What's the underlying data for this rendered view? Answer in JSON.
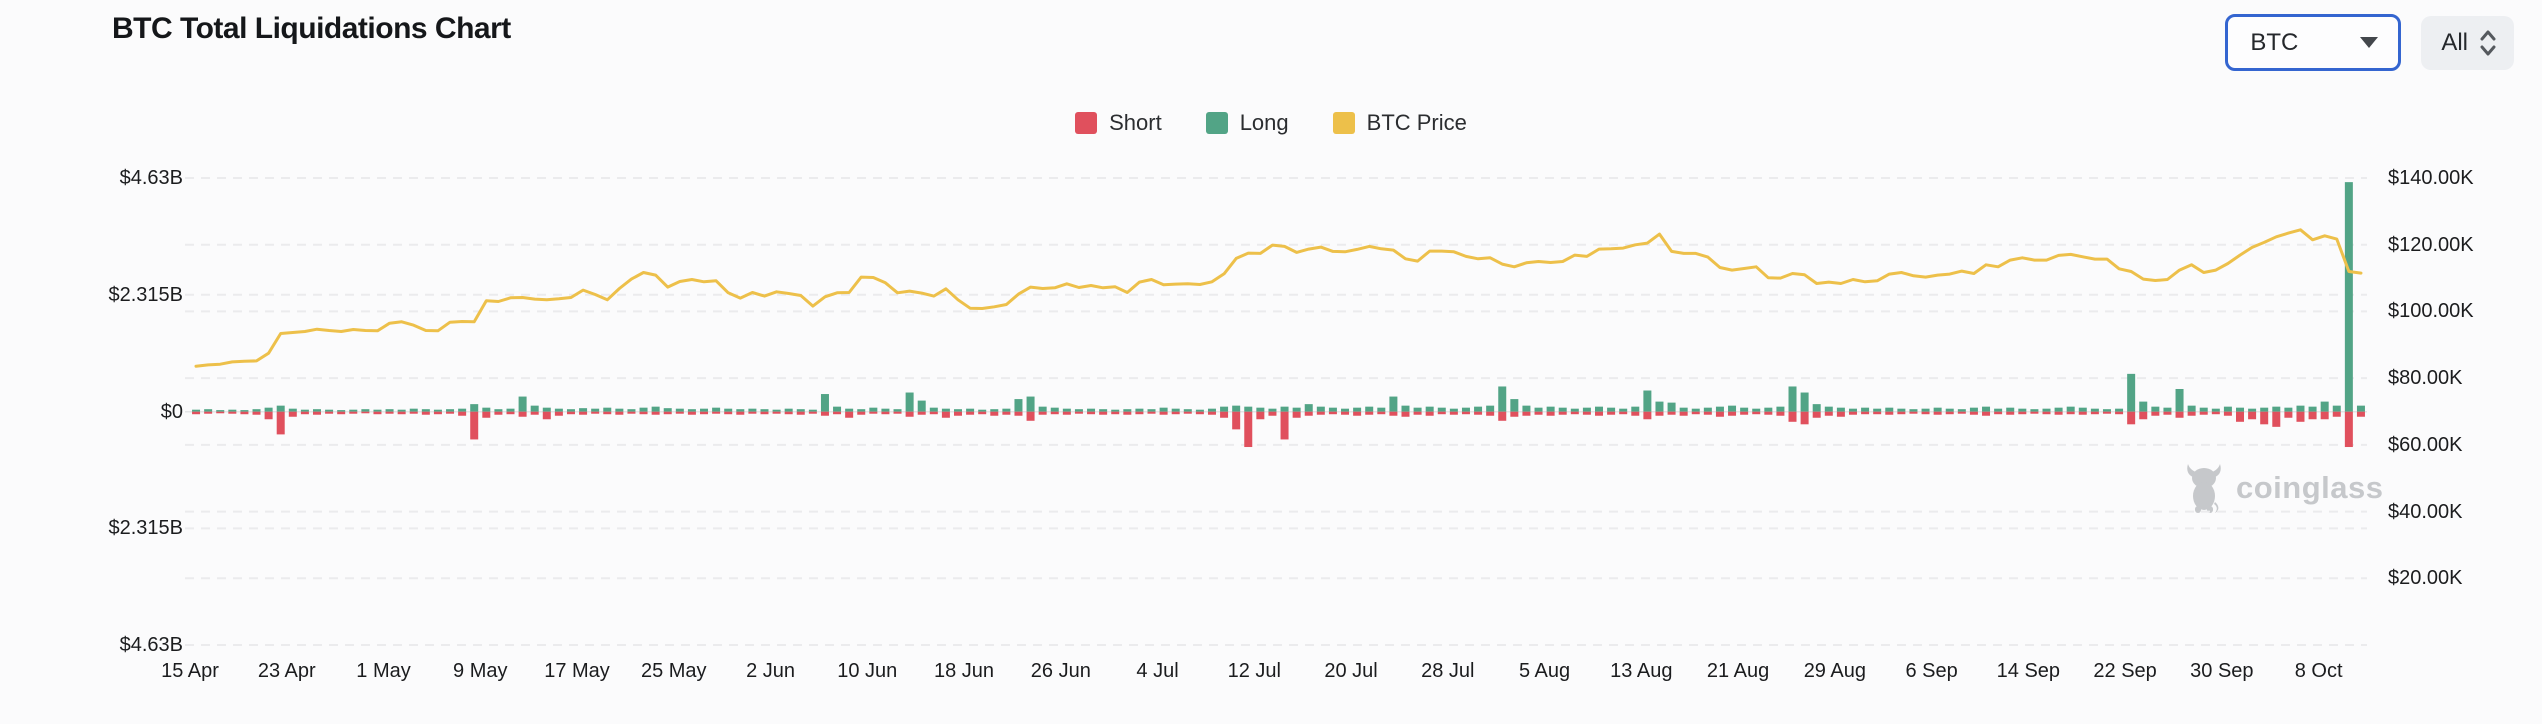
{
  "header": {
    "title": "BTC Total Liquidations Chart"
  },
  "controls": {
    "symbol_select": {
      "value": "BTC"
    },
    "range_select": {
      "value": "All"
    }
  },
  "legend": [
    {
      "label": "Short",
      "color": "#e0505d"
    },
    {
      "label": "Long",
      "color": "#52a486"
    },
    {
      "label": "BTC Price",
      "color": "#edc04a"
    }
  ],
  "watermark": {
    "text": "coinglass"
  },
  "chart_data": {
    "type": "bar",
    "subtype": "diverging-bars-with-line",
    "title": "BTC Total Liquidations Chart",
    "start_date": "15 Apr",
    "end_date": "11 Oct",
    "days": 180,
    "x_tick_interval_days": 8,
    "x_tick_labels": [
      "15 Apr",
      "23 Apr",
      "1 May",
      "9 May",
      "17 May",
      "25 May",
      "2 Jun",
      "10 Jun",
      "18 Jun",
      "26 Jun",
      "4 Jul",
      "12 Jul",
      "20 Jul",
      "28 Jul",
      "5 Aug",
      "13 Aug",
      "21 Aug",
      "29 Aug",
      "6 Sep",
      "14 Sep",
      "22 Sep",
      "30 Sep",
      "8 Oct"
    ],
    "left_axis": {
      "labels": [
        "$4.63B",
        "$2.315B",
        "$0",
        "$2.315B",
        "$4.63B"
      ],
      "unit": "$B",
      "max": 4.63,
      "min": -4.63,
      "grid": "dashed"
    },
    "right_axis": {
      "labels": [
        "$140.00K",
        "$120.00K",
        "$100.00K",
        "$80.00K",
        "$60.00K",
        "$40.00K",
        "$20.00K"
      ],
      "unit": "$K",
      "max": 140,
      "min": 20,
      "grid": "dashed"
    },
    "legend_position": "top-center",
    "series": [
      {
        "name": "Short",
        "type": "bar",
        "direction": "down",
        "axis": "left",
        "unit": "$B",
        "color": "#e0505d",
        "values": [
          0.05,
          0.04,
          0.03,
          0.04,
          0.05,
          0.06,
          0.15,
          0.45,
          0.1,
          0.05,
          0.06,
          0.04,
          0.05,
          0.04,
          0.03,
          0.05,
          0.04,
          0.05,
          0.04,
          0.06,
          0.05,
          0.04,
          0.08,
          0.55,
          0.12,
          0.06,
          0.05,
          0.1,
          0.06,
          0.15,
          0.08,
          0.05,
          0.06,
          0.04,
          0.05,
          0.06,
          0.04,
          0.05,
          0.06,
          0.05,
          0.04,
          0.06,
          0.05,
          0.04,
          0.05,
          0.06,
          0.04,
          0.05,
          0.04,
          0.05,
          0.06,
          0.04,
          0.08,
          0.05,
          0.12,
          0.06,
          0.04,
          0.05,
          0.04,
          0.1,
          0.06,
          0.05,
          0.12,
          0.08,
          0.06,
          0.05,
          0.08,
          0.06,
          0.08,
          0.18,
          0.06,
          0.05,
          0.06,
          0.04,
          0.05,
          0.06,
          0.05,
          0.06,
          0.05,
          0.04,
          0.06,
          0.05,
          0.04,
          0.05,
          0.06,
          0.12,
          0.35,
          0.7,
          0.15,
          0.08,
          0.55,
          0.12,
          0.08,
          0.06,
          0.05,
          0.06,
          0.08,
          0.06,
          0.05,
          0.08,
          0.1,
          0.06,
          0.08,
          0.05,
          0.06,
          0.05,
          0.06,
          0.08,
          0.18,
          0.1,
          0.08,
          0.06,
          0.08,
          0.06,
          0.05,
          0.06,
          0.08,
          0.06,
          0.05,
          0.08,
          0.15,
          0.08,
          0.06,
          0.08,
          0.05,
          0.06,
          0.1,
          0.08,
          0.06,
          0.05,
          0.06,
          0.08,
          0.2,
          0.25,
          0.12,
          0.08,
          0.1,
          0.06,
          0.05,
          0.05,
          0.06,
          0.05,
          0.04,
          0.05,
          0.06,
          0.05,
          0.04,
          0.06,
          0.08,
          0.05,
          0.06,
          0.05,
          0.04,
          0.05,
          0.06,
          0.05,
          0.06,
          0.05,
          0.04,
          0.05,
          0.25,
          0.15,
          0.08,
          0.06,
          0.12,
          0.08,
          0.06,
          0.05,
          0.08,
          0.2,
          0.15,
          0.25,
          0.3,
          0.12,
          0.2,
          0.15,
          0.15,
          0.1,
          0.7,
          0.1
        ]
      },
      {
        "name": "Long",
        "type": "bar",
        "direction": "up",
        "axis": "left",
        "unit": "$B",
        "color": "#52a486",
        "values": [
          0.04,
          0.05,
          0.03,
          0.04,
          0.03,
          0.05,
          0.08,
          0.12,
          0.06,
          0.04,
          0.05,
          0.04,
          0.03,
          0.04,
          0.05,
          0.04,
          0.05,
          0.04,
          0.06,
          0.05,
          0.04,
          0.05,
          0.06,
          0.15,
          0.08,
          0.05,
          0.06,
          0.3,
          0.12,
          0.08,
          0.06,
          0.05,
          0.07,
          0.06,
          0.08,
          0.06,
          0.05,
          0.08,
          0.1,
          0.07,
          0.06,
          0.05,
          0.06,
          0.08,
          0.06,
          0.05,
          0.06,
          0.05,
          0.04,
          0.06,
          0.05,
          0.04,
          0.35,
          0.1,
          0.06,
          0.05,
          0.08,
          0.06,
          0.05,
          0.38,
          0.22,
          0.08,
          0.06,
          0.05,
          0.06,
          0.04,
          0.05,
          0.06,
          0.25,
          0.3,
          0.1,
          0.08,
          0.06,
          0.05,
          0.06,
          0.05,
          0.04,
          0.05,
          0.06,
          0.05,
          0.08,
          0.06,
          0.05,
          0.04,
          0.06,
          0.1,
          0.12,
          0.1,
          0.08,
          0.06,
          0.1,
          0.08,
          0.15,
          0.1,
          0.08,
          0.06,
          0.08,
          0.1,
          0.08,
          0.3,
          0.12,
          0.08,
          0.1,
          0.08,
          0.06,
          0.08,
          0.1,
          0.12,
          0.5,
          0.25,
          0.12,
          0.08,
          0.1,
          0.08,
          0.06,
          0.08,
          0.1,
          0.08,
          0.06,
          0.1,
          0.42,
          0.2,
          0.18,
          0.08,
          0.06,
          0.08,
          0.1,
          0.12,
          0.08,
          0.06,
          0.08,
          0.1,
          0.5,
          0.38,
          0.15,
          0.1,
          0.08,
          0.06,
          0.08,
          0.06,
          0.08,
          0.06,
          0.05,
          0.06,
          0.08,
          0.06,
          0.05,
          0.08,
          0.1,
          0.06,
          0.08,
          0.06,
          0.05,
          0.06,
          0.08,
          0.1,
          0.08,
          0.06,
          0.05,
          0.06,
          0.75,
          0.2,
          0.1,
          0.08,
          0.45,
          0.12,
          0.08,
          0.06,
          0.1,
          0.08,
          0.06,
          0.08,
          0.1,
          0.08,
          0.12,
          0.1,
          0.2,
          0.12,
          4.55,
          0.12
        ]
      },
      {
        "name": "BTC Price",
        "type": "line",
        "axis": "right",
        "unit": "$K",
        "color": "#edc04a",
        "values": [
          83.6,
          84.0,
          84.2,
          84.9,
          85.1,
          85.2,
          87.5,
          93.4,
          93.7,
          94.0,
          94.7,
          94.3,
          94.0,
          94.6,
          94.3,
          94.2,
          96.5,
          96.9,
          95.9,
          94.3,
          94.2,
          96.8,
          97.0,
          96.9,
          103.2,
          103.0,
          104.1,
          104.2,
          103.7,
          103.5,
          103.8,
          104.2,
          106.4,
          105.1,
          103.5,
          106.9,
          109.7,
          111.7,
          110.9,
          107.3,
          109.0,
          109.6,
          108.9,
          109.2,
          105.6,
          104.0,
          105.7,
          104.6,
          105.9,
          105.4,
          104.8,
          101.6,
          104.4,
          105.6,
          105.7,
          110.3,
          110.2,
          108.6,
          105.6,
          106.1,
          105.5,
          104.6,
          106.8,
          103.5,
          101.0,
          100.9,
          101.4,
          102.1,
          105.2,
          107.3,
          106.9,
          107.1,
          108.3,
          107.2,
          107.8,
          107.1,
          107.4,
          105.7,
          108.8,
          109.6,
          108.0,
          108.2,
          108.3,
          108.1,
          108.9,
          111.3,
          115.9,
          117.5,
          117.4,
          119.9,
          119.5,
          117.7,
          118.7,
          119.3,
          118.0,
          117.9,
          118.6,
          119.5,
          118.8,
          118.4,
          115.8,
          115.1,
          118.1,
          118.1,
          117.9,
          116.5,
          115.8,
          116.1,
          114.2,
          113.4,
          114.6,
          115.0,
          114.7,
          115.0,
          116.9,
          116.5,
          118.7,
          118.8,
          119.0,
          120.0,
          120.5,
          123.2,
          118.0,
          117.4,
          117.4,
          116.3,
          113.2,
          112.4,
          112.9,
          113.4,
          110.1,
          110.0,
          111.4,
          111.0,
          108.4,
          108.8,
          108.4,
          109.6,
          108.9,
          109.2,
          111.2,
          111.7,
          110.7,
          110.3,
          110.9,
          111.2,
          112.1,
          111.4,
          114.0,
          113.4,
          115.4,
          116.1,
          115.4,
          115.4,
          116.8,
          117.1,
          116.4,
          115.7,
          115.7,
          112.8,
          112.0,
          109.7,
          109.3,
          109.6,
          112.4,
          114.0,
          111.7,
          112.4,
          114.4,
          116.9,
          119.2,
          120.7,
          122.4,
          123.5,
          124.5,
          121.5,
          122.7,
          121.7,
          112.0,
          111.5
        ]
      }
    ]
  }
}
